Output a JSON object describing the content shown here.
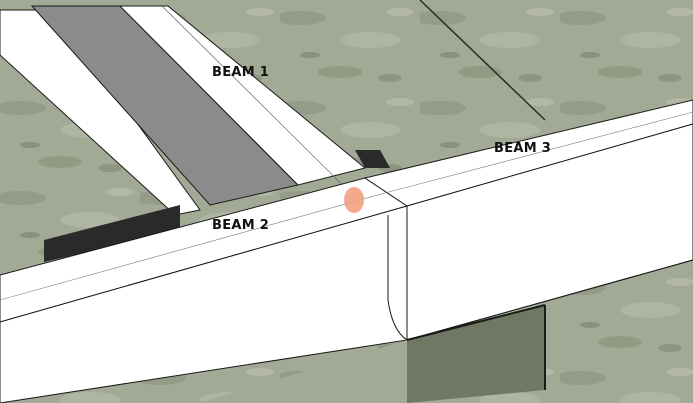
{
  "labels": {
    "beam_1": "BEAM 1",
    "beam_2": "BEAM 2",
    "beam_3": "BEAM 3"
  },
  "colors": {
    "ground": "#9ea58f",
    "ground_dark": "#6f7864",
    "beam_face": "#ffffff",
    "beam_edge": "#1a1a1a",
    "beam_web_gray": "#8a8a8c",
    "beam_underside": "#c9c9c9",
    "marker": "#f2a07e"
  },
  "icons": {
    "marker": "selection-point"
  }
}
